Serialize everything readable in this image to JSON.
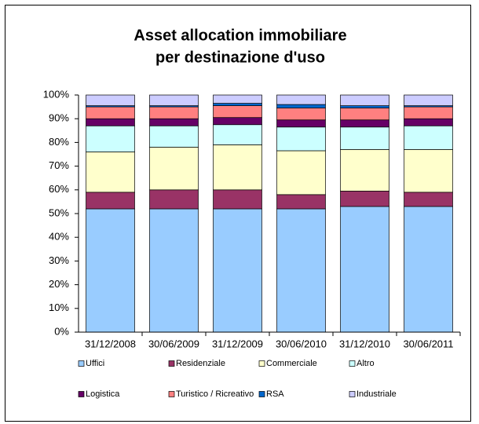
{
  "chart_data": {
    "type": "stacked_bar",
    "title": [
      "Asset allocation immobiliare",
      "per destinazione d'uso"
    ],
    "categories": [
      "31/12/2008",
      "30/06/2009",
      "31/12/2009",
      "30/06/2010",
      "31/12/2010",
      "30/06/2011"
    ],
    "series": [
      {
        "name": "Uffici",
        "color": "#99ccff",
        "values": [
          52,
          52,
          52,
          52,
          53,
          53
        ]
      },
      {
        "name": "Residenziale",
        "color": "#993366",
        "values": [
          7,
          8,
          8,
          6,
          6.5,
          6
        ]
      },
      {
        "name": "Commerciale",
        "color": "#ffffcc",
        "values": [
          17,
          18,
          19,
          18.5,
          17.5,
          18
        ]
      },
      {
        "name": "Altro",
        "color": "#ccffff",
        "values": [
          11,
          9,
          8.5,
          10,
          9.5,
          10
        ]
      },
      {
        "name": "Logistica",
        "color": "#660066",
        "values": [
          3,
          3,
          3,
          3,
          3,
          3
        ]
      },
      {
        "name": "Turistico / Ricreativo",
        "color": "#ff8080",
        "values": [
          5,
          5,
          5,
          5,
          5,
          5
        ]
      },
      {
        "name": "RSA",
        "color": "#0066cc",
        "values": [
          0.5,
          0.5,
          1,
          1.5,
          1,
          0.5
        ]
      },
      {
        "name": "Industriale",
        "color": "#ccccff",
        "values": [
          4.5,
          4.5,
          3.5,
          4,
          4.5,
          4.5
        ]
      }
    ],
    "ylim": [
      0,
      100
    ],
    "yticks": [
      {
        "value": 0,
        "label": "0%"
      },
      {
        "value": 10,
        "label": "10%"
      },
      {
        "value": 20,
        "label": "20%"
      },
      {
        "value": 30,
        "label": "30%"
      },
      {
        "value": 40,
        "label": "40%"
      },
      {
        "value": 50,
        "label": "50%"
      },
      {
        "value": 60,
        "label": "60%"
      },
      {
        "value": 70,
        "label": "70%"
      },
      {
        "value": 80,
        "label": "80%"
      },
      {
        "value": 90,
        "label": "90%"
      },
      {
        "value": 100,
        "label": "100%"
      }
    ],
    "legend": "bottom"
  }
}
